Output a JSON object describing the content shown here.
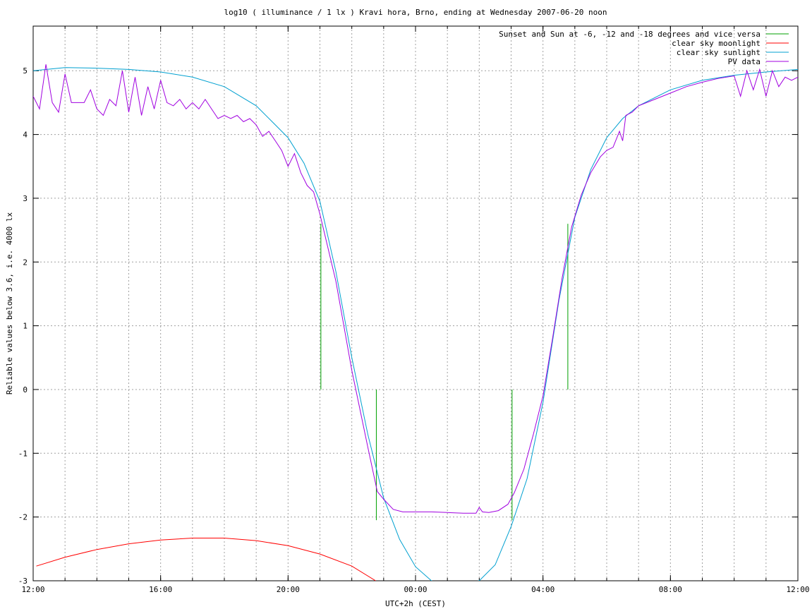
{
  "chart_data": {
    "type": "line",
    "title": "log10 ( illuminance / 1 lx ) Kravi hora, Brno, ending at Wednesday 2007-06-20 noon",
    "xlabel": "UTC+2h (CEST)",
    "ylabel": "Reliable values below 3.6, i.e. 4000 lx",
    "xlim": [
      12,
      36
    ],
    "ylim": [
      -3,
      5.7
    ],
    "x_ticks": [
      {
        "v": 12,
        "label": "12:00"
      },
      {
        "v": 16,
        "label": "16:00"
      },
      {
        "v": 20,
        "label": "20:00"
      },
      {
        "v": 24,
        "label": "00:00"
      },
      {
        "v": 28,
        "label": "04:00"
      },
      {
        "v": 32,
        "label": "08:00"
      },
      {
        "v": 36,
        "label": "12:00"
      }
    ],
    "y_ticks": [
      {
        "v": 5,
        "label": "5"
      },
      {
        "v": 4,
        "label": "4"
      },
      {
        "v": 3,
        "label": "3"
      },
      {
        "v": 2,
        "label": "2"
      },
      {
        "v": 1,
        "label": "1"
      },
      {
        "v": 0,
        "label": "0"
      },
      {
        "v": -1,
        "label": "-1"
      },
      {
        "v": -2,
        "label": "-2"
      },
      {
        "v": -3,
        "label": "-3"
      }
    ],
    "grid": true,
    "legend_position": "top-right",
    "series": [
      {
        "name": "Sunset and Sun at -6, -12 and -18 degrees and vice versa",
        "color": "#00a000",
        "style": "impulses",
        "points": [
          [
            21.03,
            2.6
          ],
          [
            21.75,
            0.0
          ],
          [
            22.77,
            -2.05
          ],
          [
            27.03,
            -2.05
          ],
          [
            28.05,
            0.0
          ],
          [
            28.78,
            2.6
          ]
        ]
      },
      {
        "name": "clear sky moonlight",
        "color": "#ff0000",
        "style": "line",
        "points": [
          [
            12.1,
            -2.77
          ],
          [
            13.0,
            -2.63
          ],
          [
            14.0,
            -2.51
          ],
          [
            15.0,
            -2.42
          ],
          [
            16.0,
            -2.36
          ],
          [
            17.0,
            -2.33
          ],
          [
            18.0,
            -2.33
          ],
          [
            19.0,
            -2.37
          ],
          [
            20.0,
            -2.45
          ],
          [
            21.0,
            -2.58
          ],
          [
            22.0,
            -2.77
          ],
          [
            22.75,
            -3.0
          ]
        ]
      },
      {
        "name": "clear sky sunlight",
        "color": "#00a0d0",
        "style": "line",
        "points": [
          [
            12.0,
            5.0
          ],
          [
            13.0,
            5.05
          ],
          [
            14.0,
            5.04
          ],
          [
            15.0,
            5.02
          ],
          [
            16.0,
            4.98
          ],
          [
            17.0,
            4.9
          ],
          [
            18.0,
            4.75
          ],
          [
            19.0,
            4.45
          ],
          [
            19.5,
            4.2
          ],
          [
            20.0,
            3.95
          ],
          [
            20.5,
            3.55
          ],
          [
            21.0,
            2.95
          ],
          [
            21.5,
            1.85
          ],
          [
            22.0,
            0.5
          ],
          [
            22.5,
            -0.7
          ],
          [
            23.0,
            -1.7
          ],
          [
            23.5,
            -2.35
          ],
          [
            24.0,
            -2.78
          ],
          [
            24.5,
            -3.0
          ],
          [
            25.0,
            -3.1
          ],
          [
            26.0,
            -3.0
          ],
          [
            26.5,
            -2.75
          ],
          [
            27.0,
            -2.15
          ],
          [
            27.5,
            -1.4
          ],
          [
            28.0,
            -0.2
          ],
          [
            28.5,
            1.4
          ],
          [
            29.0,
            2.7
          ],
          [
            29.5,
            3.45
          ],
          [
            30.0,
            3.95
          ],
          [
            30.5,
            4.25
          ],
          [
            31.0,
            4.45
          ],
          [
            32.0,
            4.7
          ],
          [
            33.0,
            4.85
          ],
          [
            34.0,
            4.93
          ],
          [
            35.0,
            4.98
          ],
          [
            36.0,
            5.02
          ]
        ]
      },
      {
        "name": "PV data",
        "color": "#a000e0",
        "style": "line",
        "points": [
          [
            12.0,
            4.6
          ],
          [
            12.2,
            4.4
          ],
          [
            12.4,
            5.1
          ],
          [
            12.6,
            4.5
          ],
          [
            12.8,
            4.35
          ],
          [
            13.0,
            4.95
          ],
          [
            13.2,
            4.5
          ],
          [
            13.4,
            4.5
          ],
          [
            13.6,
            4.5
          ],
          [
            13.8,
            4.7
          ],
          [
            14.0,
            4.4
          ],
          [
            14.2,
            4.3
          ],
          [
            14.4,
            4.55
          ],
          [
            14.6,
            4.45
          ],
          [
            14.8,
            5.0
          ],
          [
            15.0,
            4.35
          ],
          [
            15.2,
            4.9
          ],
          [
            15.4,
            4.3
          ],
          [
            15.6,
            4.75
          ],
          [
            15.8,
            4.4
          ],
          [
            16.0,
            4.85
          ],
          [
            16.2,
            4.5
          ],
          [
            16.4,
            4.45
          ],
          [
            16.6,
            4.55
          ],
          [
            16.8,
            4.4
          ],
          [
            17.0,
            4.5
          ],
          [
            17.2,
            4.4
          ],
          [
            17.4,
            4.55
          ],
          [
            17.6,
            4.4
          ],
          [
            17.8,
            4.25
          ],
          [
            18.0,
            4.3
          ],
          [
            18.2,
            4.25
          ],
          [
            18.4,
            4.3
          ],
          [
            18.6,
            4.2
          ],
          [
            18.8,
            4.25
          ],
          [
            19.0,
            4.15
          ],
          [
            19.2,
            3.97
          ],
          [
            19.4,
            4.05
          ],
          [
            19.6,
            3.9
          ],
          [
            19.8,
            3.75
          ],
          [
            20.0,
            3.5
          ],
          [
            20.2,
            3.7
          ],
          [
            20.4,
            3.4
          ],
          [
            20.6,
            3.2
          ],
          [
            20.8,
            3.1
          ],
          [
            21.0,
            2.75
          ],
          [
            21.5,
            1.7
          ],
          [
            22.0,
            0.3
          ],
          [
            22.5,
            -0.9
          ],
          [
            22.8,
            -1.6
          ],
          [
            23.0,
            -1.72
          ],
          [
            23.3,
            -1.88
          ],
          [
            23.6,
            -1.92
          ],
          [
            24.0,
            -1.92
          ],
          [
            24.5,
            -1.92
          ],
          [
            25.0,
            -1.93
          ],
          [
            25.5,
            -1.94
          ],
          [
            25.9,
            -1.94
          ],
          [
            26.0,
            -1.85
          ],
          [
            26.1,
            -1.92
          ],
          [
            26.3,
            -1.93
          ],
          [
            26.6,
            -1.9
          ],
          [
            26.9,
            -1.8
          ],
          [
            27.1,
            -1.62
          ],
          [
            27.4,
            -1.25
          ],
          [
            27.7,
            -0.7
          ],
          [
            28.0,
            -0.1
          ],
          [
            28.3,
            0.8
          ],
          [
            28.6,
            1.75
          ],
          [
            28.9,
            2.55
          ],
          [
            29.2,
            3.05
          ],
          [
            29.5,
            3.4
          ],
          [
            29.8,
            3.65
          ],
          [
            30.0,
            3.75
          ],
          [
            30.2,
            3.8
          ],
          [
            30.4,
            4.05
          ],
          [
            30.5,
            3.9
          ],
          [
            30.6,
            4.3
          ],
          [
            30.8,
            4.35
          ],
          [
            31.0,
            4.45
          ],
          [
            31.5,
            4.55
          ],
          [
            32.0,
            4.65
          ],
          [
            32.5,
            4.75
          ],
          [
            33.0,
            4.82
          ],
          [
            33.5,
            4.88
          ],
          [
            34.0,
            4.92
          ],
          [
            34.2,
            4.6
          ],
          [
            34.4,
            5.0
          ],
          [
            34.6,
            4.7
          ],
          [
            34.8,
            5.02
          ],
          [
            35.0,
            4.6
          ],
          [
            35.2,
            5.0
          ],
          [
            35.4,
            4.75
          ],
          [
            35.6,
            4.9
          ],
          [
            35.8,
            4.85
          ],
          [
            36.0,
            4.9
          ]
        ]
      }
    ]
  }
}
